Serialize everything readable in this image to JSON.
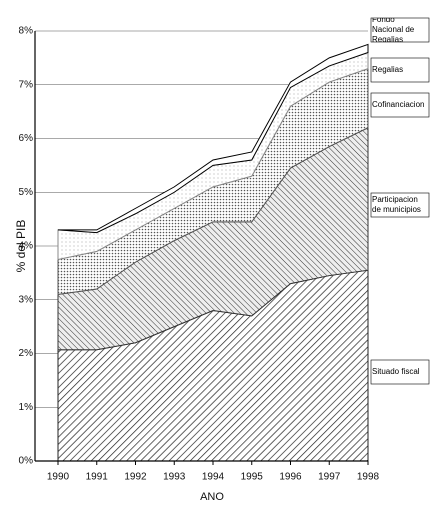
{
  "chart_data": {
    "type": "stacked_area",
    "x_label": "ANO",
    "y_label": "% del PIB",
    "categories": [
      "1990",
      "1991",
      "1992",
      "1993",
      "1994",
      "1995",
      "1996",
      "1997",
      "1998"
    ],
    "series": [
      {
        "name": "Situado fiscal",
        "color": "#222222",
        "values": [
          2.07,
          2.07,
          2.2,
          2.5,
          2.8,
          2.7,
          3.3,
          3.45,
          3.55
        ]
      },
      {
        "name": "Participacion de municipios",
        "color": "#333333",
        "values": [
          1.03,
          1.13,
          1.5,
          1.6,
          1.65,
          1.75,
          2.15,
          2.4,
          2.65
        ]
      },
      {
        "name": "Cofinanciacion",
        "color": "#555555",
        "values": [
          0.65,
          0.7,
          0.6,
          0.6,
          0.65,
          0.85,
          1.15,
          1.2,
          1.1
        ]
      },
      {
        "name": "Regalias",
        "color": "#888888",
        "values": [
          0.55,
          0.35,
          0.3,
          0.3,
          0.4,
          0.3,
          0.35,
          0.3,
          0.3
        ]
      },
      {
        "name": "Fondo Nacional de Regalias",
        "color": "#000000",
        "values": [
          0,
          0.05,
          0.1,
          0.1,
          0.1,
          0.15,
          0.1,
          0.15,
          0.15
        ]
      }
    ],
    "ylim": [
      0,
      8
    ],
    "yticks": [
      {
        "value": 0,
        "label": "0%"
      },
      {
        "value": 1,
        "label": "1%"
      },
      {
        "value": 2,
        "label": "2%"
      },
      {
        "value": 3,
        "label": "3%"
      },
      {
        "value": 4,
        "label": "4%"
      },
      {
        "value": 5,
        "label": "5%"
      },
      {
        "value": 6,
        "label": "6%"
      },
      {
        "value": 7,
        "label": "7%"
      },
      {
        "value": 8,
        "label": "8%"
      }
    ],
    "grid": true
  }
}
